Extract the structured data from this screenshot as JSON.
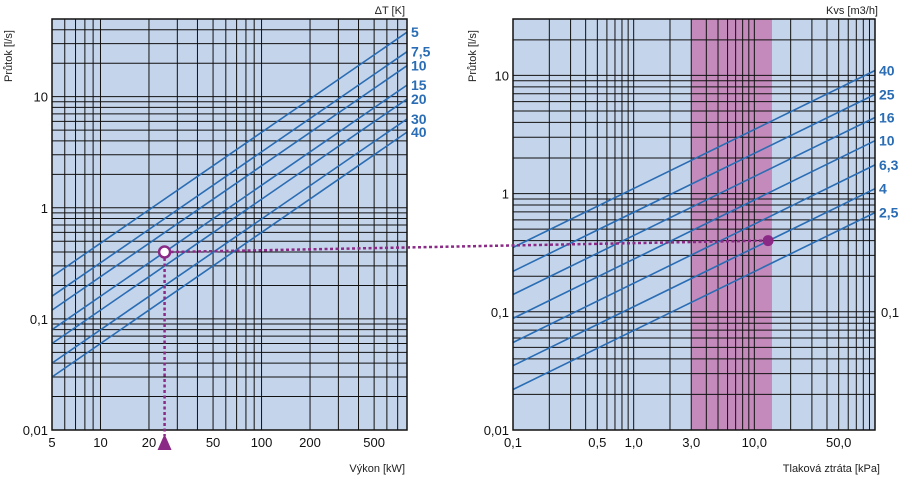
{
  "chart_data": [
    {
      "type": "line",
      "name": "left-nomogram",
      "xscale": "log",
      "yscale": "log",
      "xlim": [
        5,
        800
      ],
      "ylim": [
        0.01,
        50
      ],
      "xlabel": "Výkon [kW]",
      "ylabel": "Průtok [l/s]",
      "legend_title": "ΔT [K]",
      "x_ticks": [
        {
          "v": 5,
          "label": "5"
        },
        {
          "v": 10,
          "label": "10"
        },
        {
          "v": 20,
          "label": "20"
        },
        {
          "v": 50,
          "label": "50"
        },
        {
          "v": 100,
          "label": "100"
        },
        {
          "v": 200,
          "label": "200"
        },
        {
          "v": 500,
          "label": "500"
        }
      ],
      "y_ticks": [
        {
          "v": 0.01,
          "label": "0,01"
        },
        {
          "v": 0.1,
          "label": "0,1"
        },
        {
          "v": 1,
          "label": "1"
        },
        {
          "v": 10,
          "label": "10"
        }
      ],
      "series": [
        {
          "name": "5",
          "label": "5",
          "x": [
            5,
            800
          ],
          "y": [
            0.24,
            38
          ]
        },
        {
          "name": "7,5",
          "label": "7,5",
          "x": [
            5,
            800
          ],
          "y": [
            0.16,
            25.4
          ]
        },
        {
          "name": "10",
          "label": "10",
          "x": [
            5,
            800
          ],
          "y": [
            0.12,
            19
          ]
        },
        {
          "name": "15",
          "label": "15",
          "x": [
            5,
            800
          ],
          "y": [
            0.08,
            12.7
          ]
        },
        {
          "name": "20",
          "label": "20",
          "x": [
            5,
            800
          ],
          "y": [
            0.06,
            9.5
          ]
        },
        {
          "name": "30",
          "label": "30",
          "x": [
            5,
            800
          ],
          "y": [
            0.04,
            6.3
          ]
        },
        {
          "name": "40",
          "label": "40",
          "x": [
            5,
            800
          ],
          "y": [
            0.03,
            4.8
          ]
        }
      ],
      "annotations": {
        "operating_point": {
          "x": 25,
          "y": 0.4
        },
        "marker_x": 25
      }
    },
    {
      "type": "line",
      "name": "right-nomogram",
      "xscale": "log",
      "yscale": "log",
      "xlim": [
        0.1,
        100
      ],
      "ylim": [
        0.01,
        30
      ],
      "xlabel": "Tlaková ztráta [kPa]",
      "ylabel": "Průtok [l/s]",
      "legend_title": "Kvs [m3/h]",
      "x_ticks": [
        {
          "v": 0.1,
          "label": "0,1"
        },
        {
          "v": 0.5,
          "label": "0,5"
        },
        {
          "v": 1,
          "label": "1,0"
        },
        {
          "v": 3,
          "label": "3,0"
        },
        {
          "v": 10,
          "label": "10,0"
        },
        {
          "v": 50,
          "label": "50,0"
        }
      ],
      "y_ticks": [
        {
          "v": 0.01,
          "label": "0,01"
        },
        {
          "v": 0.1,
          "label": "0,1"
        },
        {
          "v": 1,
          "label": "1"
        },
        {
          "v": 10,
          "label": "10"
        }
      ],
      "highlight_band": {
        "from": 3,
        "to": 14
      },
      "series": [
        {
          "name": "40",
          "label": "40",
          "x": [
            0.1,
            100
          ],
          "y": [
            0.35,
            11
          ]
        },
        {
          "name": "25",
          "label": "25",
          "x": [
            0.1,
            100
          ],
          "y": [
            0.22,
            6.9
          ]
        },
        {
          "name": "16",
          "label": "16",
          "x": [
            0.1,
            100
          ],
          "y": [
            0.14,
            4.4
          ]
        },
        {
          "name": "10",
          "label": "10",
          "x": [
            0.1,
            100
          ],
          "y": [
            0.088,
            2.8
          ]
        },
        {
          "name": "6,3",
          "label": "6,3",
          "x": [
            0.1,
            100
          ],
          "y": [
            0.055,
            1.75
          ]
        },
        {
          "name": "4",
          "label": "4",
          "x": [
            0.1,
            100
          ],
          "y": [
            0.035,
            1.1
          ]
        },
        {
          "name": "2,5",
          "label": "2,5",
          "x": [
            0.1,
            100
          ],
          "y": [
            0.022,
            0.69
          ]
        }
      ],
      "annotations": {
        "operating_point": {
          "x": 13,
          "y": 0.4
        }
      }
    }
  ]
}
